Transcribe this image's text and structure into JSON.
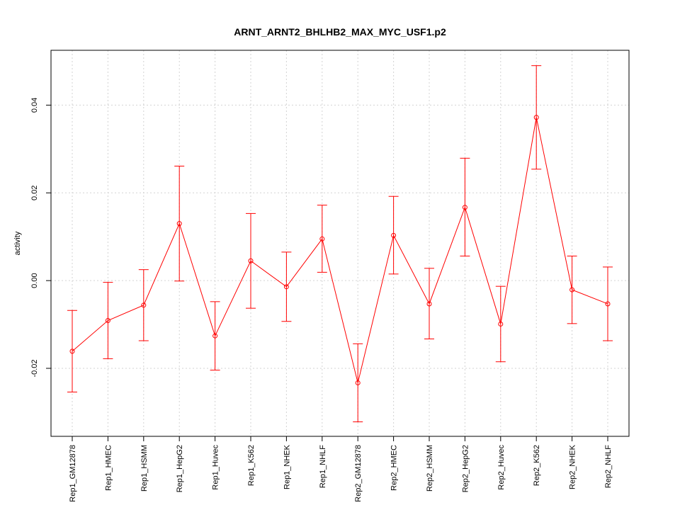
{
  "chart_data": {
    "type": "line",
    "title": "ARNT_ARNT2_BHLHB2_MAX_MYC_USF1.p2",
    "xlabel": "",
    "ylabel": "activity",
    "categories": [
      "Rep1_GM12878",
      "Rep1_HMEC",
      "Rep1_HSMM",
      "Rep1_HepG2",
      "Rep1_Huvec",
      "Rep1_K562",
      "Rep1_NHEK",
      "Rep1_NHLF",
      "Rep2_GM12878",
      "Rep2_HMEC",
      "Rep2_HSMM",
      "Rep2_HepG2",
      "Rep2_Huvec",
      "Rep2_K562",
      "Rep2_NHEK",
      "Rep2_NHLF"
    ],
    "series": [
      {
        "values": [
          -0.0161,
          -0.0091,
          -0.0056,
          0.013,
          -0.0126,
          0.0045,
          -0.0014,
          0.0095,
          -0.0233,
          0.0103,
          -0.0053,
          0.0167,
          -0.0099,
          0.0372,
          -0.0021,
          -0.0053
        ],
        "upper": [
          -0.0068,
          -0.0004,
          0.0025,
          0.0261,
          -0.0048,
          0.0153,
          0.0065,
          0.0172,
          -0.0144,
          0.0192,
          0.0028,
          0.0279,
          -0.0013,
          0.049,
          0.0056,
          0.0031
        ],
        "lower": [
          -0.0254,
          -0.0178,
          -0.0137,
          -0.0001,
          -0.0204,
          -0.0063,
          -0.0093,
          0.0019,
          -0.0322,
          0.0015,
          -0.0133,
          0.0056,
          -0.0185,
          0.0254,
          -0.0098,
          -0.0137
        ]
      }
    ],
    "ylim": [
      -0.0355,
      0.0525
    ],
    "yticks": [
      -0.02,
      0.0,
      0.02,
      0.04
    ],
    "ytick_labels": [
      "-0.02",
      "0.00",
      "0.02",
      "0.04"
    ],
    "grid": true,
    "color": "#ff0000"
  }
}
